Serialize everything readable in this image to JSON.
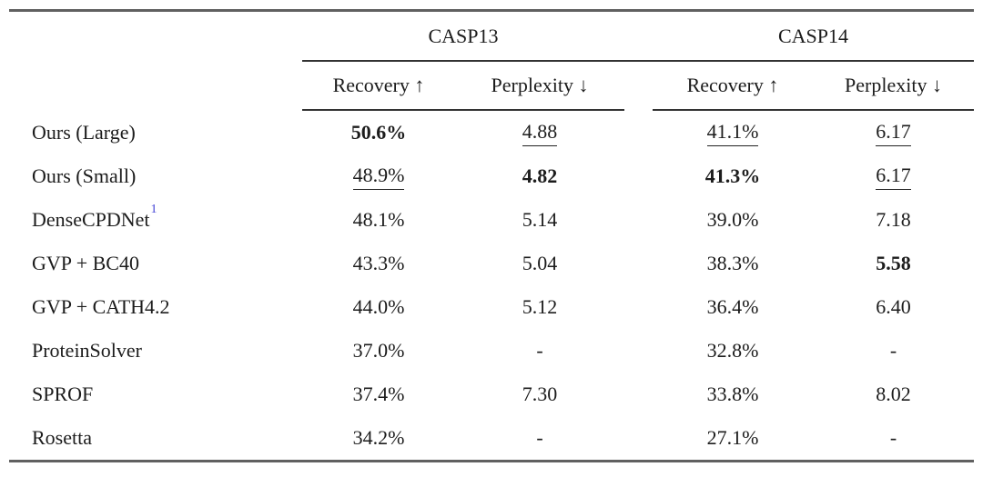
{
  "table": {
    "col_groups": [
      {
        "label": "CASP13"
      },
      {
        "label": "CASP14"
      }
    ],
    "sub_headers": [
      "Recovery ↑",
      "Perplexity ↓",
      "Recovery ↑",
      "Perplexity ↓"
    ],
    "rows": [
      {
        "label": "Ours (Large)",
        "cells": [
          {
            "v": "50.6%",
            "s": "bold"
          },
          {
            "v": "4.88",
            "s": "underline"
          },
          {
            "v": "41.1%",
            "s": "underline"
          },
          {
            "v": "6.17",
            "s": "underline"
          }
        ]
      },
      {
        "label": "Ours (Small)",
        "cells": [
          {
            "v": "48.9%",
            "s": "underline"
          },
          {
            "v": "4.82",
            "s": "bold"
          },
          {
            "v": "41.3%",
            "s": "bold"
          },
          {
            "v": "6.17",
            "s": "underline"
          }
        ]
      },
      {
        "label": "DenseCPDNet",
        "sup": "1",
        "cells": [
          {
            "v": "48.1%",
            "s": ""
          },
          {
            "v": "5.14",
            "s": ""
          },
          {
            "v": "39.0%",
            "s": ""
          },
          {
            "v": "7.18",
            "s": ""
          }
        ]
      },
      {
        "label": "GVP + BC40",
        "cells": [
          {
            "v": "43.3%",
            "s": ""
          },
          {
            "v": "5.04",
            "s": ""
          },
          {
            "v": "38.3%",
            "s": ""
          },
          {
            "v": "5.58",
            "s": "bold"
          }
        ]
      },
      {
        "label": "GVP + CATH4.2",
        "cells": [
          {
            "v": "44.0%",
            "s": ""
          },
          {
            "v": "5.12",
            "s": ""
          },
          {
            "v": "36.4%",
            "s": ""
          },
          {
            "v": "6.40",
            "s": ""
          }
        ]
      },
      {
        "label": "ProteinSolver",
        "cells": [
          {
            "v": "37.0%",
            "s": ""
          },
          {
            "v": "-",
            "s": ""
          },
          {
            "v": "32.8%",
            "s": ""
          },
          {
            "v": "-",
            "s": ""
          }
        ]
      },
      {
        "label": "SPROF",
        "cells": [
          {
            "v": "37.4%",
            "s": ""
          },
          {
            "v": "7.30",
            "s": ""
          },
          {
            "v": "33.8%",
            "s": ""
          },
          {
            "v": "8.02",
            "s": ""
          }
        ]
      },
      {
        "label": "Rosetta",
        "cells": [
          {
            "v": "34.2%",
            "s": ""
          },
          {
            "v": "-",
            "s": ""
          },
          {
            "v": "27.1%",
            "s": ""
          },
          {
            "v": "-",
            "s": ""
          }
        ]
      }
    ]
  },
  "colors": {
    "citation_blue": "#4545d6",
    "text": "#1c1c1c",
    "rule_heavy": "#606060",
    "rule_thin": "#333333"
  }
}
